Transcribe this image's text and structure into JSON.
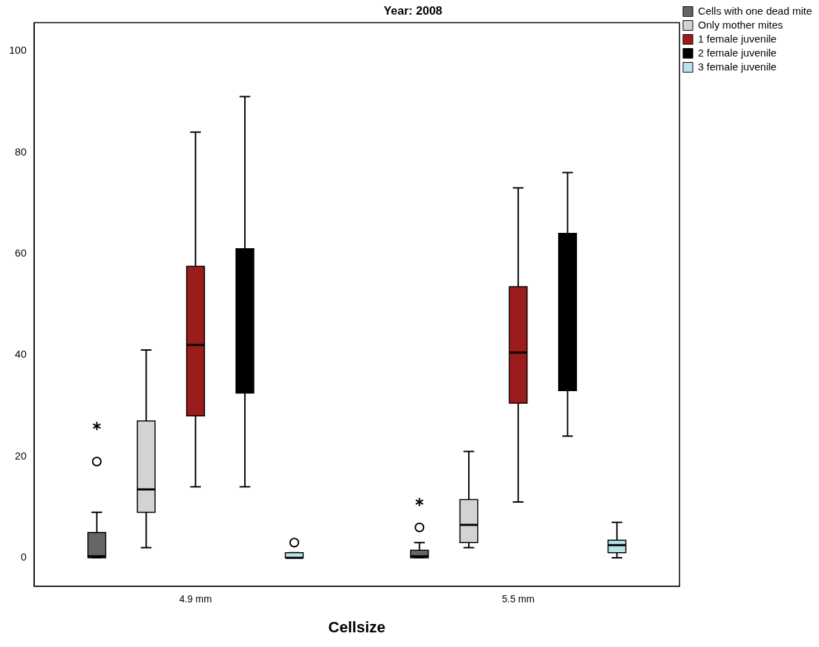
{
  "chart_data": {
    "type": "box",
    "title": "Year: 2008",
    "xlabel": "Cellsize",
    "categories": [
      "4.9 mm",
      "5.5 mm"
    ],
    "ylim": [
      -5.6,
      105.6
    ],
    "yticks": [
      0,
      20,
      40,
      60,
      80,
      100
    ],
    "grid": false,
    "legend": "top right",
    "series": [
      {
        "name": "Cells with one dead mite",
        "color": "#666666",
        "boxes": [
          {
            "low": 0,
            "q1": 0,
            "median": 0.3,
            "q3": 5,
            "high": 9,
            "outliers": [
              19,
              26
            ]
          },
          {
            "low": 0,
            "q1": 0,
            "median": 0.3,
            "q3": 1.5,
            "high": 3,
            "outliers": [
              6,
              11
            ]
          }
        ]
      },
      {
        "name": "Only mother mites",
        "color": "#d3d3d3",
        "boxes": [
          {
            "low": 2,
            "q1": 9,
            "median": 13.5,
            "q3": 27,
            "high": 41
          },
          {
            "low": 2,
            "q1": 3,
            "median": 6.5,
            "q3": 11.5,
            "high": 21
          }
        ]
      },
      {
        "name": "1 female juvenile",
        "color": "#9c1b1b",
        "boxes": [
          {
            "low": 14,
            "q1": 28,
            "median": 42,
            "q3": 57.5,
            "high": 84
          },
          {
            "low": 11,
            "q1": 30.5,
            "median": 40.5,
            "q3": 53.5,
            "high": 73
          }
        ]
      },
      {
        "name": "2 female juvenile",
        "color": "#000000",
        "boxes": [
          {
            "low": 14,
            "q1": 32.5,
            "median": 45,
            "q3": 61,
            "high": 91
          },
          {
            "low": 24,
            "q1": 33,
            "median": 48,
            "q3": 64,
            "high": 76
          }
        ]
      },
      {
        "name": "3 female juvenile",
        "color": "#b8e4e8",
        "boxes": [
          {
            "low": 0,
            "q1": 0,
            "median": 0,
            "q3": 1,
            "high": 1,
            "outliers": [
              3
            ]
          },
          {
            "low": 0,
            "q1": 1,
            "median": 2.5,
            "q3": 3.5,
            "high": 7
          }
        ]
      }
    ]
  }
}
